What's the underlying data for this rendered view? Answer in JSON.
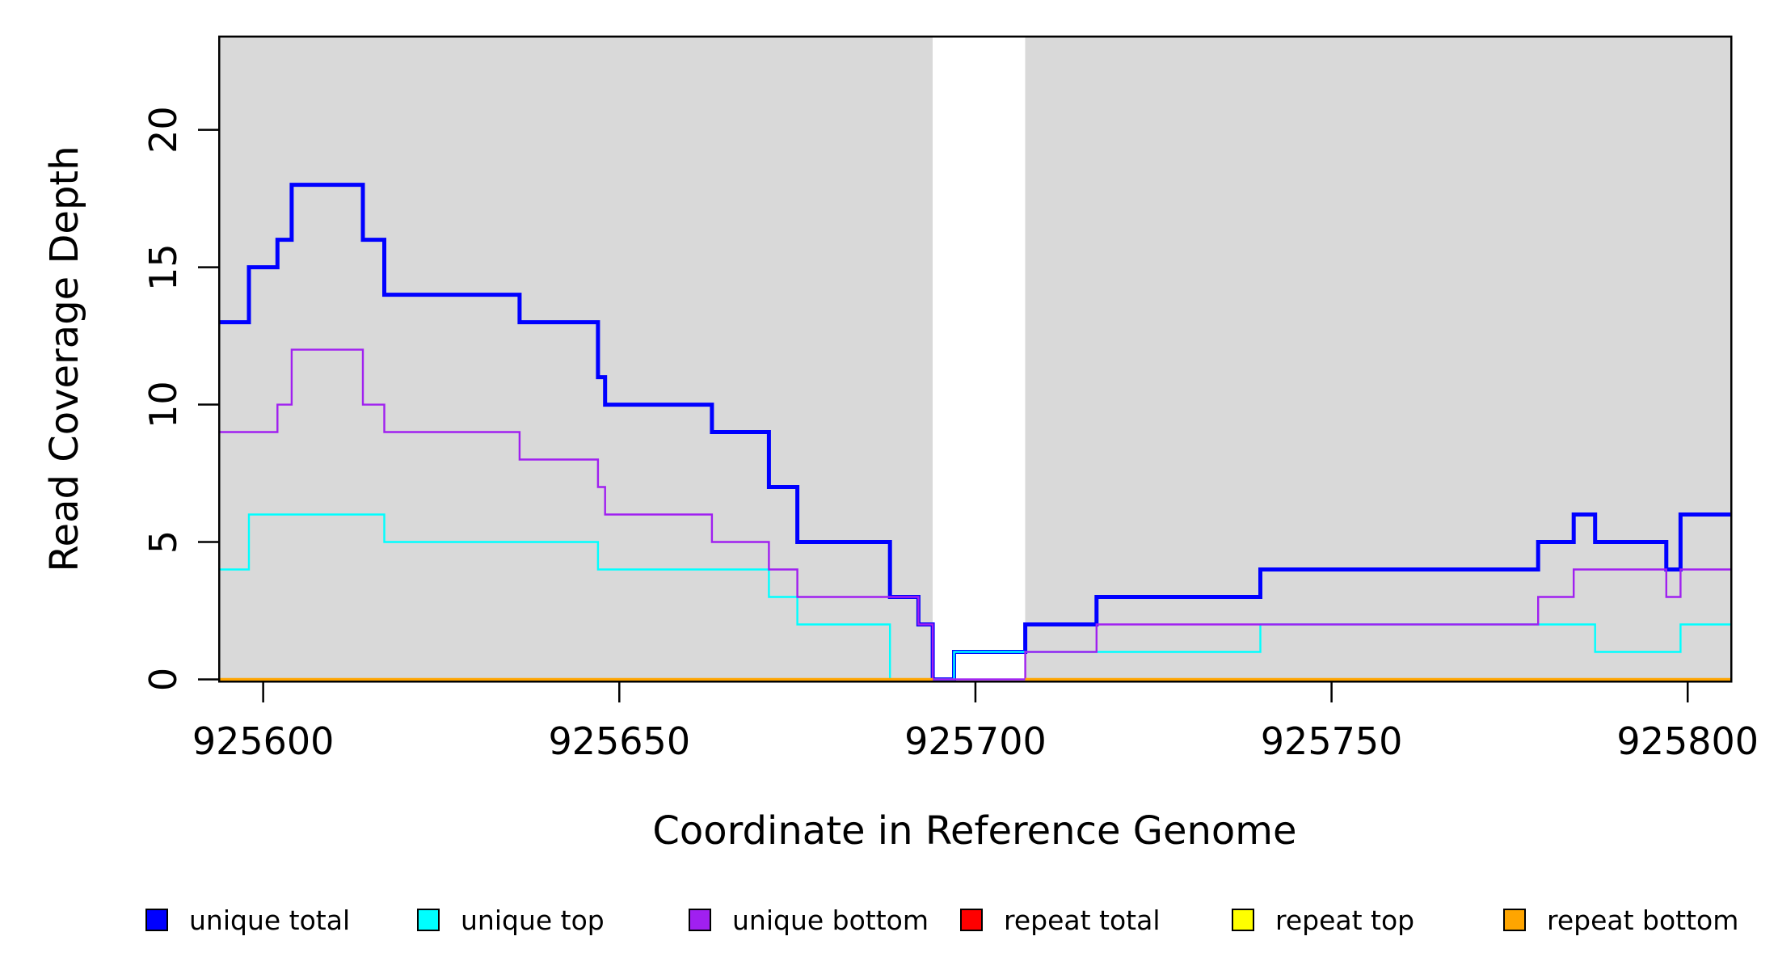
{
  "figure": {
    "background_color": "#ffffff",
    "plot_background_color": "#d9d9d9",
    "uncovered_region_color": "#ffffff",
    "box_color": "#000000"
  },
  "chart_data": {
    "type": "line",
    "subtype": "step-coverage-plot",
    "title": "",
    "xlabel": "Coordinate in Reference Genome",
    "ylabel": "Read Coverage Depth",
    "xlim": [
      925593.8,
      925806.1
    ],
    "ylim": [
      -0.073,
      23.4
    ],
    "x_ticks": [
      925600,
      925650,
      925700,
      925750,
      925800
    ],
    "y_ticks": [
      0,
      5,
      10,
      15,
      20
    ],
    "grid": false,
    "legend_position": "bottom",
    "uncovered_gap_x": [
      925694,
      925707
    ],
    "series": [
      {
        "name": "unique total",
        "color": "#0000ff",
        "line_width": 5,
        "split_at_gap": false,
        "steps": [
          [
            925594,
            13
          ],
          [
            925598,
            15
          ],
          [
            925602,
            16
          ],
          [
            925604,
            18
          ],
          [
            925614,
            16
          ],
          [
            925617,
            14
          ],
          [
            925636,
            13
          ],
          [
            925647,
            11
          ],
          [
            925648,
            10
          ],
          [
            925663,
            9
          ],
          [
            925671,
            7
          ],
          [
            925675,
            5
          ],
          [
            925688,
            3
          ],
          [
            925692,
            2
          ],
          [
            925694,
            0
          ],
          [
            925697,
            1
          ],
          [
            925707,
            2
          ],
          [
            925717,
            3
          ],
          [
            925740,
            4
          ],
          [
            925779,
            5
          ],
          [
            925784,
            6
          ],
          [
            925787,
            5
          ],
          [
            925797,
            4
          ],
          [
            925799,
            6
          ]
        ]
      },
      {
        "name": "unique top",
        "color": "#00ffff",
        "line_width": 2.4,
        "split_at_gap": false,
        "steps": [
          [
            925594,
            4
          ],
          [
            925598,
            6
          ],
          [
            925617,
            5
          ],
          [
            925647,
            4
          ],
          [
            925671,
            3
          ],
          [
            925675,
            2
          ],
          [
            925688,
            0
          ],
          [
            925697,
            1
          ],
          [
            925740,
            2
          ],
          [
            925787,
            1
          ],
          [
            925799,
            2
          ]
        ]
      },
      {
        "name": "unique bottom",
        "color": "#a020f0",
        "line_width": 2.4,
        "split_at_gap": false,
        "steps": [
          [
            925594,
            9
          ],
          [
            925602,
            10
          ],
          [
            925604,
            12
          ],
          [
            925614,
            10
          ],
          [
            925617,
            9
          ],
          [
            925636,
            8
          ],
          [
            925647,
            7
          ],
          [
            925648,
            6
          ],
          [
            925663,
            5
          ],
          [
            925671,
            4
          ],
          [
            925675,
            3
          ],
          [
            925692,
            2
          ],
          [
            925694,
            0
          ],
          [
            925707,
            1
          ],
          [
            925717,
            2
          ],
          [
            925779,
            3
          ],
          [
            925784,
            4
          ],
          [
            925797,
            3
          ],
          [
            925799,
            4
          ]
        ]
      },
      {
        "name": "repeat total",
        "color": "#ff0000",
        "line_width": 2.4,
        "split_at_gap": true,
        "steps": [
          [
            925594,
            0
          ]
        ]
      },
      {
        "name": "repeat top",
        "color": "#ffff00",
        "line_width": 2.4,
        "split_at_gap": true,
        "steps": [
          [
            925594,
            0
          ]
        ]
      },
      {
        "name": "repeat bottom",
        "color": "#ffa500",
        "line_width": 3.6,
        "split_at_gap": true,
        "steps": [
          [
            925594,
            0
          ]
        ]
      }
    ]
  }
}
